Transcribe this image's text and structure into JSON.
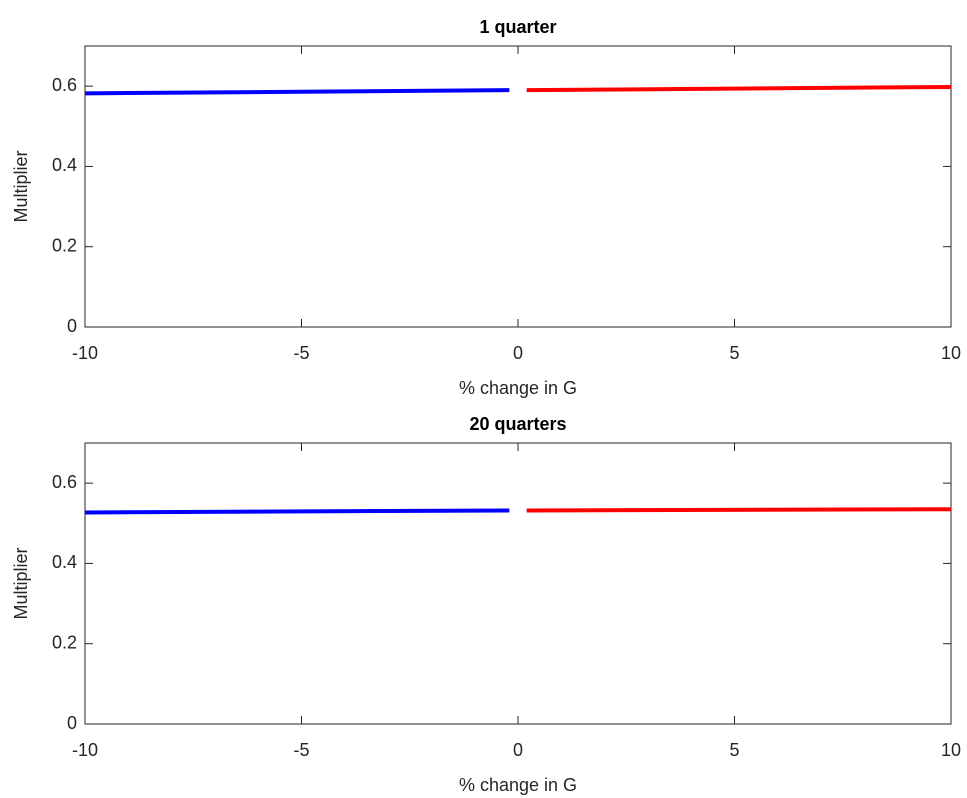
{
  "chart_data": [
    {
      "type": "line",
      "title": "1 quarter",
      "x_label": "% change in G",
      "y_label": "Multiplier",
      "xlim": [
        -10,
        10
      ],
      "xticks": [
        -10,
        -5,
        0,
        5,
        10
      ],
      "ylim": [
        0,
        0.7
      ],
      "yticks": [
        0,
        0.2,
        0.4,
        0.6
      ],
      "series": [
        {
          "color": "#0000ff",
          "x": [
            -10,
            -0.2
          ],
          "values": [
            0.582,
            0.59
          ]
        },
        {
          "color": "#ff0000",
          "x": [
            0.2,
            10
          ],
          "values": [
            0.59,
            0.598
          ]
        }
      ]
    },
    {
      "type": "line",
      "title": "20 quarters",
      "x_label": "% change in G",
      "y_label": "Multiplier",
      "xlim": [
        -10,
        10
      ],
      "xticks": [
        -10,
        -5,
        0,
        5,
        10
      ],
      "ylim": [
        0,
        0.7
      ],
      "yticks": [
        0,
        0.2,
        0.4,
        0.6
      ],
      "series": [
        {
          "color": "#0000ff",
          "x": [
            -10,
            -0.2
          ],
          "values": [
            0.527,
            0.532
          ]
        },
        {
          "color": "#ff0000",
          "x": [
            0.2,
            10
          ],
          "values": [
            0.532,
            0.535
          ]
        }
      ]
    }
  ]
}
